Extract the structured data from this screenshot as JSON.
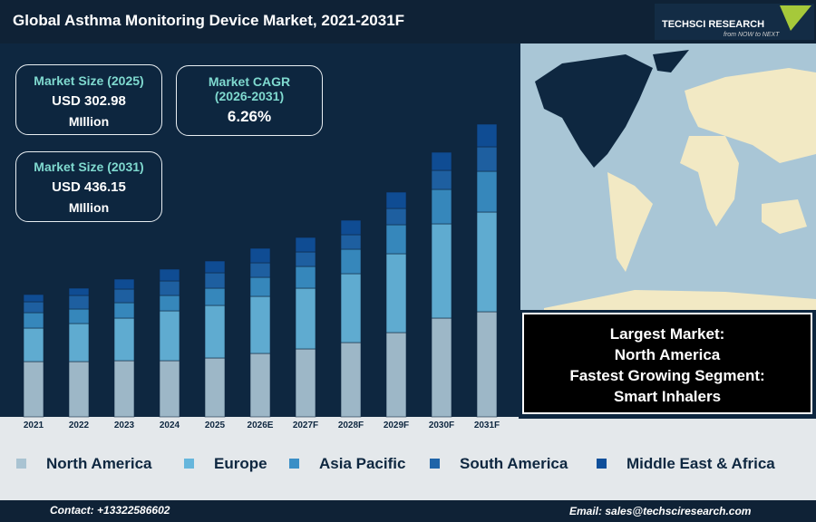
{
  "header": {
    "title": "Global Asthma Monitoring Device Market, 2021-2031F",
    "logo": "TECHSCI RESEARCH",
    "tagline": "from NOW to NEXT"
  },
  "cards": [
    {
      "label": "Market Size (2025)",
      "value": "USD 302.98",
      "unit": "MIllion"
    },
    {
      "label": [
        "Market CAGR",
        "(2026-2031)"
      ],
      "value": "6.26%"
    },
    {
      "label": "Market Size (2031)",
      "value": "USD 436.15",
      "unit": "MIllion"
    }
  ],
  "highlight": [
    "Largest Market:",
    "North America",
    "Fastest Growing Segment:",
    "Smart Inhalers"
  ],
  "chart_data": {
    "type": "bar",
    "stacked": true,
    "categories": [
      "2021",
      "2022",
      "2023",
      "2024",
      "2025",
      "2026E",
      "2027F",
      "2028F",
      "2029F",
      "2030F",
      "2031F"
    ],
    "ylim": [
      0,
      330
    ],
    "series": [
      {
        "name": "North America",
        "color": "#a9c3d2",
        "values": [
          61,
          61,
          62,
          62,
          65,
          70,
          75,
          82,
          93,
          109,
          116
        ]
      },
      {
        "name": "Europe",
        "color": "#66b6dc",
        "values": [
          37,
          42,
          47,
          55,
          58,
          63,
          67,
          76,
          87,
          104,
          110
        ]
      },
      {
        "name": "Asia Pacific",
        "color": "#3a8fc6",
        "values": [
          17,
          16,
          17,
          17,
          19,
          21,
          24,
          27,
          32,
          38,
          45
        ]
      },
      {
        "name": "South America",
        "color": "#1f64a8",
        "values": [
          12,
          15,
          15,
          16,
          17,
          16,
          16,
          16,
          18,
          21,
          27
        ]
      },
      {
        "name": "Middle East & Africa",
        "color": "#0f4f9a",
        "values": [
          8,
          8,
          11,
          13,
          13,
          16,
          16,
          16,
          18,
          20,
          25
        ]
      }
    ]
  },
  "footer": {
    "contact": "Contact: +13322586602",
    "email": "Email: sales@techsciresearch.com"
  }
}
